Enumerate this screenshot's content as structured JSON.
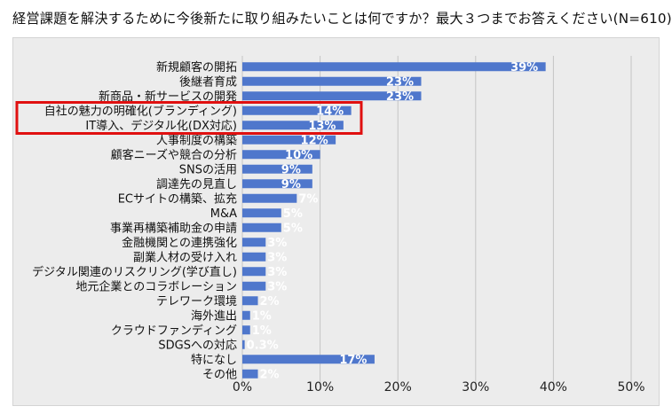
{
  "chart_data": {
    "type": "bar",
    "orientation": "horizontal",
    "title": "経営課題を解決するために今後新たに取り組みたいことは何ですか？最大３つまでお答えください(N=610)",
    "categories": [
      "新規顧客の開拓",
      "後継者育成",
      "新商品・新サービスの開発",
      "自社の魅力の明確化(ブランディング)",
      "IT導入、デジタル化(DX対応)",
      "人事制度の構築",
      "顧客ニーズや競合の分析",
      "SNSの活用",
      "調達先の見直し",
      "ECサイトの構築、拡充",
      "M&A",
      "事業再構築補助金の申請",
      "金融機関との連携強化",
      "副業人材の受け入れ",
      "デジタル関連のリスクリング(学び直し)",
      "地元企業とのコラボレーション",
      "テレワーク環境",
      "海外進出",
      "クラウドファンディング",
      "SDGSへの対応",
      "特になし",
      "その他"
    ],
    "values": [
      39,
      23,
      23,
      14,
      13,
      12,
      10,
      9,
      9,
      7,
      5,
      5,
      3,
      3,
      3,
      3,
      2,
      1,
      1,
      0.3,
      17,
      2
    ],
    "value_labels": [
      "39%",
      "23%",
      "23%",
      "14%",
      "13%",
      "12%",
      "10%",
      "9%",
      "9%",
      "7%",
      "5%",
      "5%",
      "3%",
      "3%",
      "3%",
      "3%",
      "2%",
      "1%",
      "1%",
      "0.3%",
      "17%",
      "2%"
    ],
    "xlim": [
      0,
      50
    ],
    "x_ticks": [
      "0%",
      "10%",
      "20%",
      "30%",
      "40%",
      "50%"
    ],
    "grid": "vertical",
    "bar_color": "#4f77cc",
    "highlight": {
      "categories": [
        "自社の魅力の明確化(ブランディング)",
        "IT導入、デジタル化(DX対応)"
      ],
      "color": "#e01010"
    }
  }
}
